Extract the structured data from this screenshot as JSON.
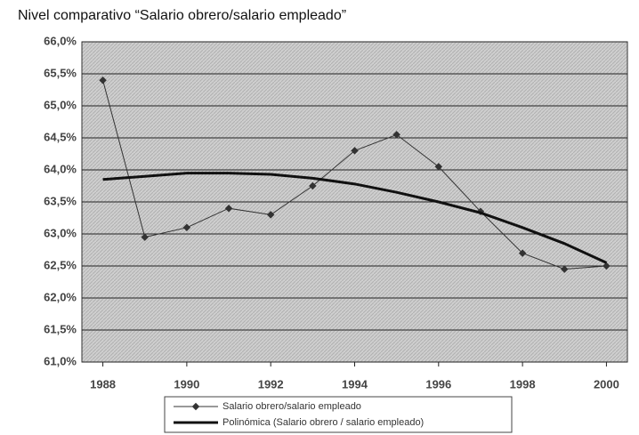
{
  "chart_data": {
    "type": "line",
    "title": "Nivel comparativo “Salario obrero/salario empleado”",
    "x": [
      1988,
      1989,
      1990,
      1991,
      1992,
      1993,
      1994,
      1995,
      1996,
      1997,
      1998,
      1999,
      2000
    ],
    "series": [
      {
        "name": "Salario obrero/salario empleado",
        "color": "#333333",
        "values": [
          65.4,
          62.95,
          63.1,
          63.4,
          63.3,
          63.75,
          64.3,
          64.55,
          64.05,
          63.35,
          62.7,
          62.45,
          62.5
        ]
      },
      {
        "name": "Polinómica (Salario obrero / salario empleado)",
        "color": "#111111",
        "values": [
          63.85,
          63.9,
          63.95,
          63.95,
          63.93,
          63.87,
          63.78,
          63.65,
          63.5,
          63.33,
          63.1,
          62.85,
          62.55
        ]
      }
    ],
    "xlim": [
      1987.5,
      2000.5
    ],
    "xticks": [
      1988,
      1990,
      1992,
      1994,
      1996,
      1998,
      2000
    ],
    "ylim": [
      61.0,
      66.0
    ],
    "yticks": [
      {
        "value": 61.0,
        "label": "61,0%"
      },
      {
        "value": 61.5,
        "label": "61,5%"
      },
      {
        "value": 62.0,
        "label": "62,0%"
      },
      {
        "value": 62.5,
        "label": "62,5%"
      },
      {
        "value": 63.0,
        "label": "63,0%"
      },
      {
        "value": 63.5,
        "label": "63,5%"
      },
      {
        "value": 64.0,
        "label": "64,0%"
      },
      {
        "value": 64.5,
        "label": "64,5%"
      },
      {
        "value": 65.0,
        "label": "65,0%"
      },
      {
        "value": 65.5,
        "label": "65,5%"
      },
      {
        "value": 66.0,
        "label": "66,0%"
      }
    ],
    "grid": true,
    "legend": "bottom"
  }
}
